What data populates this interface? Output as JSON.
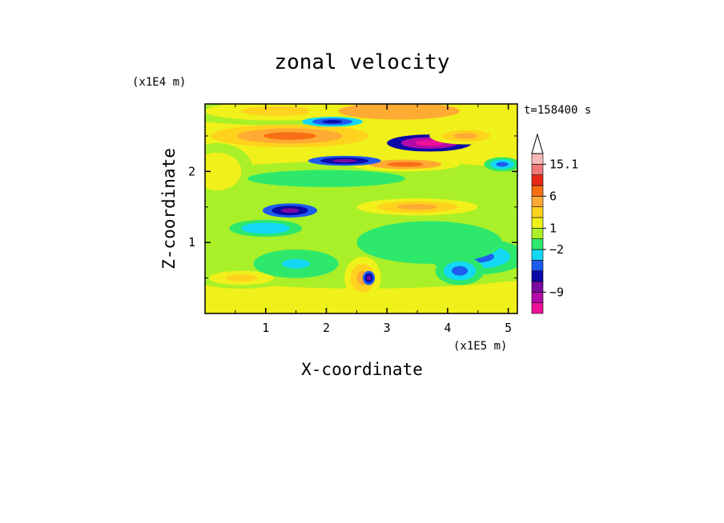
{
  "chart_data": {
    "type": "heatmap",
    "title": "zonal velocity",
    "xlabel": "X-coordinate",
    "ylabel": "Z-coordinate",
    "x_multiplier": "(x1E5 m)",
    "y_multiplier": "(x1E4 m)",
    "time_label": "t=158400 s",
    "xlim": [
      0,
      5.15
    ],
    "ylim": [
      0,
      2.95
    ],
    "x_ticks": [
      "1",
      "2",
      "3",
      "4",
      "5"
    ],
    "x_tick_values": [
      1,
      2,
      3,
      4,
      5
    ],
    "y_ticks": [
      "1",
      "2"
    ],
    "y_tick_values": [
      1,
      2
    ],
    "colorbar": {
      "labels": [
        "15.1",
        "6",
        "1",
        "−2",
        "−9"
      ],
      "label_values": [
        15.1,
        6,
        1,
        -2,
        -9
      ],
      "levels": [
        {
          "color": "#f0109a"
        },
        {
          "color": "#b20aa8"
        },
        {
          "color": "#7a0aa0"
        },
        {
          "color": "#0a0aa8"
        },
        {
          "color": "#1e5cf0"
        },
        {
          "color": "#12d8f4"
        },
        {
          "color": "#2ee86c"
        },
        {
          "color": "#aaf028"
        },
        {
          "color": "#f0f01a"
        },
        {
          "color": "#ffd21e"
        },
        {
          "color": "#ffaa32"
        },
        {
          "color": "#f86e14"
        },
        {
          "color": "#e82814"
        },
        {
          "color": "#f07878"
        },
        {
          "color": "#f8b8b8"
        }
      ]
    },
    "field_blobs": [
      {
        "x": 2.6,
        "z": 1.25,
        "rx": 5.2,
        "rz": 0.9,
        "v": 0.5
      },
      {
        "x": 1.2,
        "z": 2.85,
        "rx": 1.8,
        "rz": 0.2,
        "v": 2.5
      },
      {
        "x": 3.2,
        "z": 2.85,
        "rx": 1.5,
        "rz": 0.18,
        "v": 4.5
      },
      {
        "x": 1.4,
        "z": 2.5,
        "rx": 1.3,
        "rz": 0.16,
        "v": 6.5
      },
      {
        "x": 3.7,
        "z": 2.4,
        "rx": 0.7,
        "rz": 0.12,
        "v": -14
      },
      {
        "x": 3.3,
        "z": 2.1,
        "rx": 0.9,
        "rz": 0.1,
        "v": 5.5
      },
      {
        "x": 4.3,
        "z": 2.5,
        "rx": 0.6,
        "rz": 0.12,
        "v": 4
      },
      {
        "x": 2.3,
        "z": 2.15,
        "rx": 0.6,
        "rz": 0.07,
        "v": -7
      },
      {
        "x": 1.4,
        "z": 1.45,
        "rx": 0.45,
        "rz": 0.1,
        "v": -6.5
      },
      {
        "x": 2.1,
        "z": 2.7,
        "rx": 0.5,
        "rz": 0.07,
        "v": -5
      },
      {
        "x": 3.5,
        "z": 1.5,
        "rx": 1.0,
        "rz": 0.12,
        "v": 3.5
      },
      {
        "x": 4.9,
        "z": 2.1,
        "rx": 0.3,
        "rz": 0.1,
        "v": -3
      },
      {
        "x": 0.2,
        "z": 2.0,
        "rx": 0.6,
        "rz": 0.4,
        "v": 1.5
      },
      {
        "x": 4.5,
        "z": 0.8,
        "rx": 0.8,
        "rz": 0.25,
        "v": -2.5
      },
      {
        "x": 3.7,
        "z": 1.0,
        "rx": 1.2,
        "rz": 0.3,
        "v": -1
      },
      {
        "x": 0.6,
        "z": 0.5,
        "rx": 0.8,
        "rz": 0.15,
        "v": 2.5
      },
      {
        "x": 1.5,
        "z": 0.7,
        "rx": 0.7,
        "rz": 0.2,
        "v": -1.5
      },
      {
        "x": 2.6,
        "z": 0.5,
        "rx": 0.3,
        "rz": 0.3,
        "v": 4
      },
      {
        "x": 2.7,
        "z": 0.5,
        "rx": 0.1,
        "rz": 0.1,
        "v": -8
      },
      {
        "x": 4.2,
        "z": 0.6,
        "rx": 0.4,
        "rz": 0.2,
        "v": -3
      },
      {
        "x": 1.0,
        "z": 1.2,
        "rx": 0.6,
        "rz": 0.12,
        "v": -2
      },
      {
        "x": 2.0,
        "z": 1.9,
        "rx": 1.3,
        "rz": 0.12,
        "v": -1
      }
    ]
  }
}
